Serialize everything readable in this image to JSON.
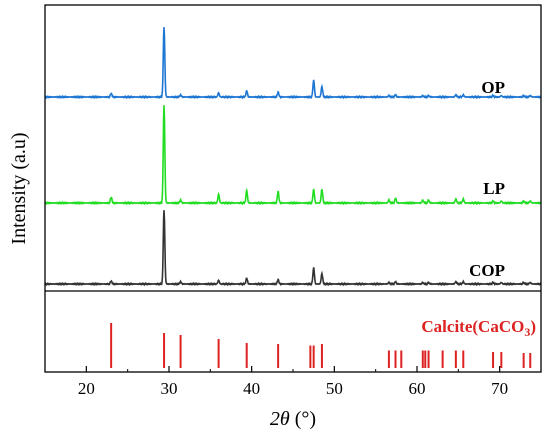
{
  "chart_data": {
    "type": "line",
    "xlabel_italic": "2θ",
    "xlabel_rest": " (°)",
    "ylabel": "Intensity (a.u)",
    "xlim": [
      15,
      75
    ],
    "xticks": [
      20,
      30,
      40,
      50,
      60,
      70
    ],
    "xtick_labels": [
      "20",
      "30",
      "40",
      "50",
      "60",
      "70"
    ],
    "series": [
      {
        "name": "OP",
        "color": "#1f77d4",
        "peaks": [
          [
            23.0,
            5
          ],
          [
            29.4,
            100
          ],
          [
            31.4,
            3
          ],
          [
            36.0,
            6
          ],
          [
            39.4,
            9
          ],
          [
            43.2,
            7
          ],
          [
            47.5,
            24
          ],
          [
            48.5,
            15
          ],
          [
            56.6,
            2
          ],
          [
            57.4,
            3
          ],
          [
            60.7,
            2
          ],
          [
            61.4,
            2
          ],
          [
            64.7,
            3
          ],
          [
            65.6,
            3
          ],
          [
            69.2,
            2
          ],
          [
            70.2,
            2
          ],
          [
            72.9,
            2
          ],
          [
            73.7,
            2
          ]
        ]
      },
      {
        "name": "LP",
        "color": "#22dd22",
        "peaks": [
          [
            23.0,
            6
          ],
          [
            29.4,
            100
          ],
          [
            31.4,
            3
          ],
          [
            36.0,
            9
          ],
          [
            39.4,
            13
          ],
          [
            43.2,
            12
          ],
          [
            47.5,
            14
          ],
          [
            48.5,
            14
          ],
          [
            56.6,
            3
          ],
          [
            57.4,
            5
          ],
          [
            60.7,
            3
          ],
          [
            61.4,
            3
          ],
          [
            64.7,
            4
          ],
          [
            65.6,
            4
          ],
          [
            69.2,
            2
          ],
          [
            70.2,
            2
          ],
          [
            72.9,
            2
          ],
          [
            73.7,
            2
          ]
        ]
      },
      {
        "name": "COP",
        "color": "#333333",
        "peaks": [
          [
            23.0,
            4
          ],
          [
            29.4,
            100
          ],
          [
            31.4,
            3
          ],
          [
            36.0,
            5
          ],
          [
            39.4,
            8
          ],
          [
            43.2,
            6
          ],
          [
            47.5,
            22
          ],
          [
            48.5,
            14
          ],
          [
            56.6,
            2
          ],
          [
            57.4,
            3
          ],
          [
            60.7,
            2
          ],
          [
            61.4,
            2
          ],
          [
            64.7,
            3
          ],
          [
            65.6,
            3
          ],
          [
            69.2,
            2
          ],
          [
            70.2,
            2
          ],
          [
            72.9,
            2
          ],
          [
            73.7,
            2
          ]
        ]
      }
    ],
    "reference": {
      "label": "Calcite(CaCO",
      "label_sub": "3",
      "label_end": ")",
      "color": "#dd2222",
      "lines": [
        [
          23.0,
          90
        ],
        [
          29.4,
          70
        ],
        [
          31.4,
          66
        ],
        [
          36.0,
          58
        ],
        [
          39.4,
          50
        ],
        [
          43.2,
          48
        ],
        [
          47.1,
          45
        ],
        [
          47.5,
          45
        ],
        [
          48.5,
          48
        ],
        [
          56.6,
          35
        ],
        [
          57.4,
          35
        ],
        [
          58.1,
          35
        ],
        [
          60.7,
          35
        ],
        [
          61.0,
          35
        ],
        [
          61.4,
          35
        ],
        [
          63.1,
          35
        ],
        [
          64.7,
          35
        ],
        [
          65.6,
          35
        ],
        [
          69.2,
          32
        ],
        [
          70.2,
          32
        ],
        [
          72.9,
          30
        ],
        [
          73.7,
          30
        ]
      ]
    }
  }
}
